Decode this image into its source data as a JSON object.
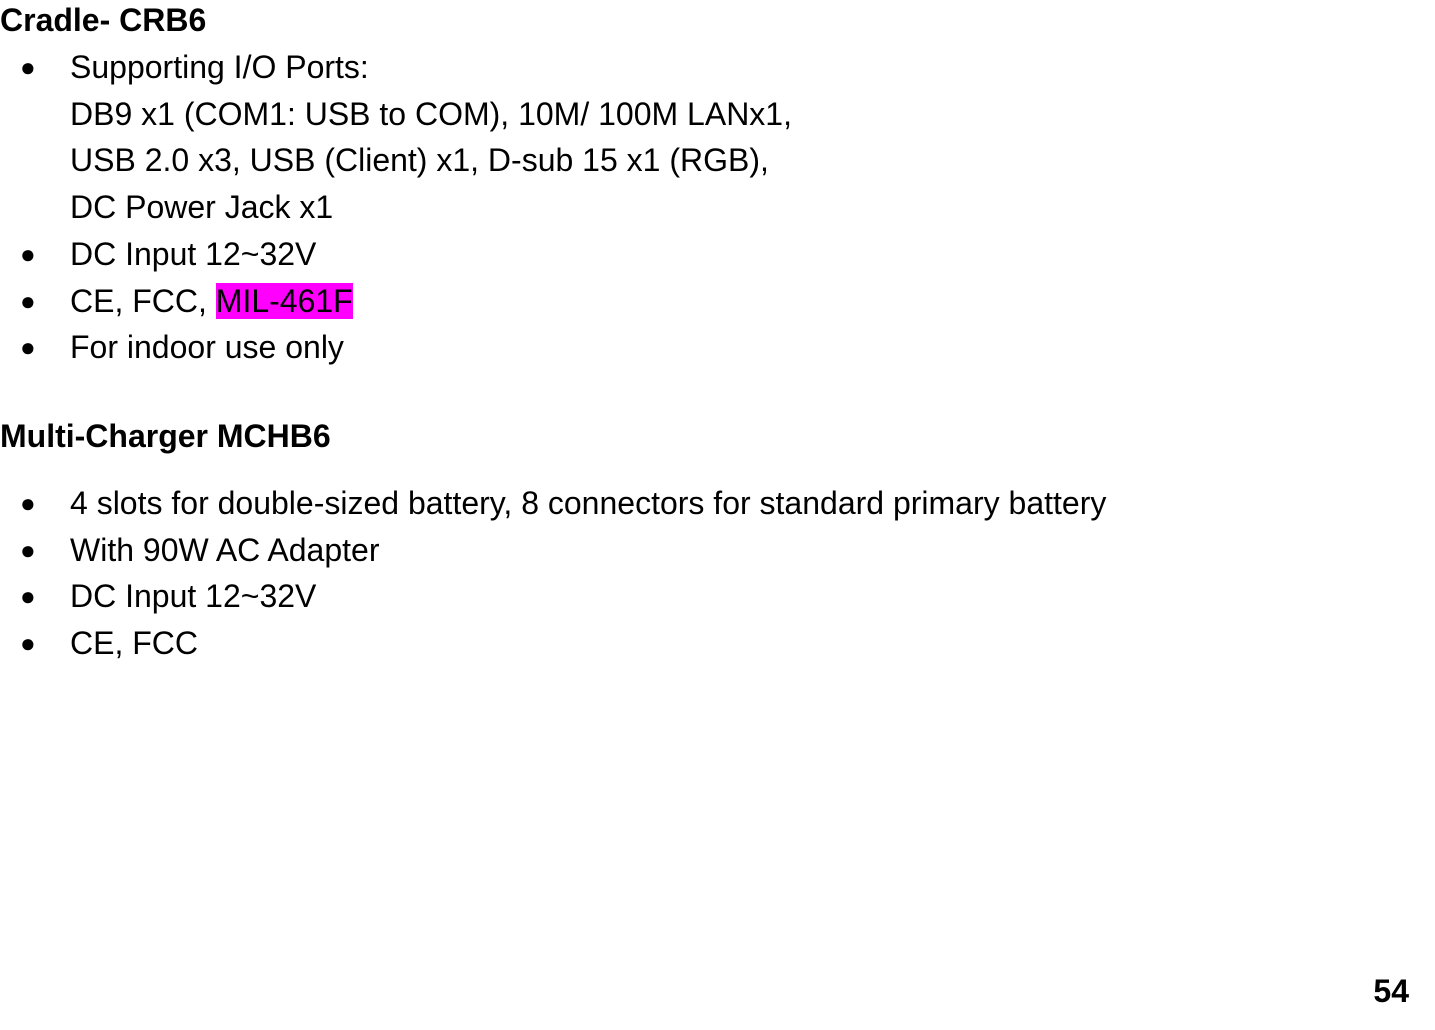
{
  "cradle": {
    "heading": "Cradle- CRB6",
    "items": [
      {
        "label": "Supporting I/O Ports:",
        "value_lines": [
          "DB9 x1 (COM1: USB to COM), 10M/ 100M LANx1,",
          "USB 2.0 x3, USB (Client) x1, D-sub 15 x1 (RGB),",
          "DC Power Jack x1"
        ]
      },
      {
        "text": "DC Input 12~32V"
      },
      {
        "prefix": "CE, FCC, ",
        "highlight": "MIL-461F"
      },
      {
        "text": "For indoor use only"
      }
    ]
  },
  "mchb": {
    "heading": "Multi-Charger MCHB6",
    "items": [
      {
        "text": "4 slots for double-sized battery, 8 connectors for standard primary battery"
      },
      {
        "text": "With 90W AC Adapter"
      },
      {
        "text": "DC Input 12~32V"
      },
      {
        "text": "CE, FCC"
      }
    ]
  },
  "page_number": "54",
  "bullet_glyph": "●",
  "highlight_color": "#ff00ff"
}
